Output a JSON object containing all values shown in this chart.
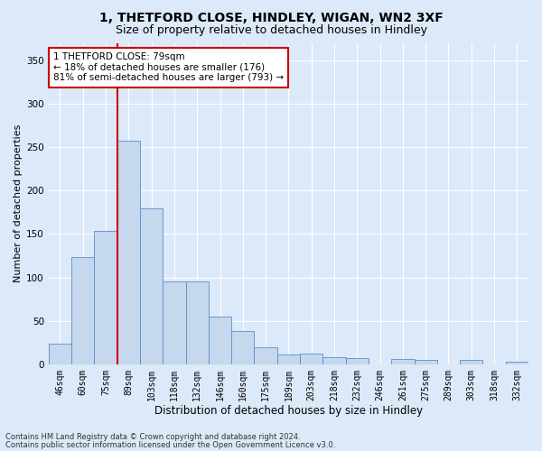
{
  "title": "1, THETFORD CLOSE, HINDLEY, WIGAN, WN2 3XF",
  "subtitle": "Size of property relative to detached houses in Hindley",
  "xlabel": "Distribution of detached houses by size in Hindley",
  "ylabel": "Number of detached properties",
  "categories": [
    "46sqm",
    "60sqm",
    "75sqm",
    "89sqm",
    "103sqm",
    "118sqm",
    "132sqm",
    "146sqm",
    "160sqm",
    "175sqm",
    "189sqm",
    "203sqm",
    "218sqm",
    "232sqm",
    "246sqm",
    "261sqm",
    "275sqm",
    "289sqm",
    "303sqm",
    "318sqm",
    "332sqm"
  ],
  "values": [
    24,
    123,
    153,
    257,
    179,
    95,
    95,
    55,
    38,
    20,
    11,
    12,
    8,
    7,
    0,
    6,
    5,
    0,
    5,
    0,
    3
  ],
  "bar_color": "#c5d8ee",
  "bar_edgecolor": "#5b8dc8",
  "background_color": "#dce9f8",
  "fig_background_color": "#dce9f8",
  "gridcolor": "#ffffff",
  "vline_x": 2.5,
  "vline_color": "#cc0000",
  "annotation_text": "1 THETFORD CLOSE: 79sqm\n← 18% of detached houses are smaller (176)\n81% of semi-detached houses are larger (793) →",
  "annotation_box_color": "#ffffff",
  "annotation_box_edgecolor": "#cc0000",
  "footer1": "Contains HM Land Registry data © Crown copyright and database right 2024.",
  "footer2": "Contains public sector information licensed under the Open Government Licence v3.0.",
  "ylim": [
    0,
    370
  ],
  "yticks": [
    0,
    50,
    100,
    150,
    200,
    250,
    300,
    350
  ],
  "title_fontsize": 10,
  "subtitle_fontsize": 9,
  "tick_fontsize": 7,
  "ylabel_fontsize": 8,
  "xlabel_fontsize": 8.5,
  "annotation_fontsize": 7.5,
  "footer_fontsize": 6
}
